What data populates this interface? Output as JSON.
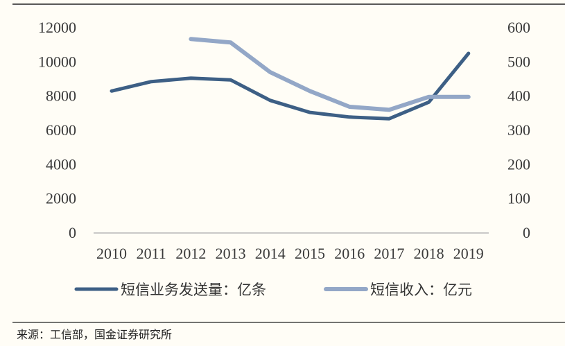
{
  "chart_data": {
    "type": "line",
    "categories": [
      "2010",
      "2011",
      "2012",
      "2013",
      "2014",
      "2015",
      "2016",
      "2017",
      "2018",
      "2019"
    ],
    "y_left": {
      "ticks": [
        0,
        2000,
        4000,
        6000,
        8000,
        10000,
        12000
      ],
      "range": [
        0,
        12000
      ]
    },
    "y_right": {
      "ticks": [
        0,
        100,
        200,
        300,
        400,
        500,
        600
      ],
      "range": [
        0,
        600
      ]
    },
    "series": [
      {
        "name": "短信业务发送量：亿条",
        "axis": "left",
        "color": "#3d5f85",
        "values": [
          8300,
          8850,
          9050,
          8950,
          7750,
          7050,
          6780,
          6680,
          7650,
          10500
        ]
      },
      {
        "name": "短信收入：亿元",
        "axis": "right",
        "color": "#93a7c7",
        "values": [
          null,
          null,
          567,
          557,
          470,
          415,
          369,
          360,
          398,
          398
        ]
      }
    ],
    "legend_position": "bottom",
    "grid": false
  },
  "source": "来源：工信部，国金证券研究所"
}
